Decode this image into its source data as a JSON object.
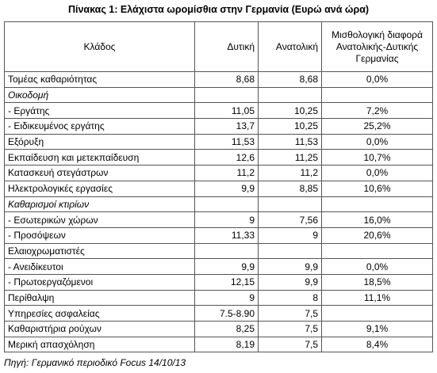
{
  "title": "Πίνακας 1: Ελάχιστα ωρομίσθια στην Γερμανία (Ευρώ ανά ώρα)",
  "table": {
    "header": [
      "Κλάδος",
      "Δυτική",
      "Ανατολική",
      "Μισθολογική διαφορά Ανατολικής-Δυτικής Γερμανίας"
    ],
    "rows": [
      [
        "Τομέας καθαριότητας",
        "8,68",
        "8,68",
        "0,0%"
      ],
      [
        "Οικοδομή"
      ],
      [
        "- Εργάτης",
        "11,05",
        "10,25",
        "7,2%"
      ],
      [
        "- Ειδικευμένος εργάτης",
        "13,7",
        "10,25",
        "25,2%"
      ],
      [
        "Εξόρυξη",
        "11,53",
        "11,53",
        "0,0%"
      ],
      [
        "Εκπαίδευση και μετεκπαίδευση",
        "12,6",
        "11,25",
        "10,7%"
      ],
      [
        "Κατασκευή στεγάστρων",
        "11,2",
        "11,2",
        "0,0%"
      ],
      [
        "Ηλεκτρολογικές εργασίες",
        "9,9",
        "8,85",
        "10,6%"
      ],
      [
        "Καθαρισμοί κτιρίων"
      ],
      [
        "- Εσωτερικών χώρων",
        "9",
        "7,56",
        "16,0%"
      ],
      [
        "- Προσόψεων",
        "11,33",
        "9",
        "20,6%"
      ],
      [
        "Ελαιοχρωματιστές"
      ],
      [
        "- Ανειδίκευτοι",
        "9,9",
        "9,9",
        "0,0%"
      ],
      [
        "- Πρωτοεργαζόμενοι",
        "12,15",
        "9,9",
        "18,5%"
      ],
      [
        "Περίθαλψη",
        "9",
        "8",
        "11,1%"
      ],
      [
        "Υπηρεσίες ασφαλείας",
        "7.5-8.90",
        "7,5"
      ],
      [
        "Καθαριστήρια ρούχων",
        "8,25",
        "7,5",
        "9,1%"
      ],
      [
        "Μερική απασχόληση",
        "8,19",
        "7,5",
        "8,4%"
      ]
    ]
  },
  "source": "Πηγή: Γερμανικό περιοδικό Focus 14/10/13"
}
